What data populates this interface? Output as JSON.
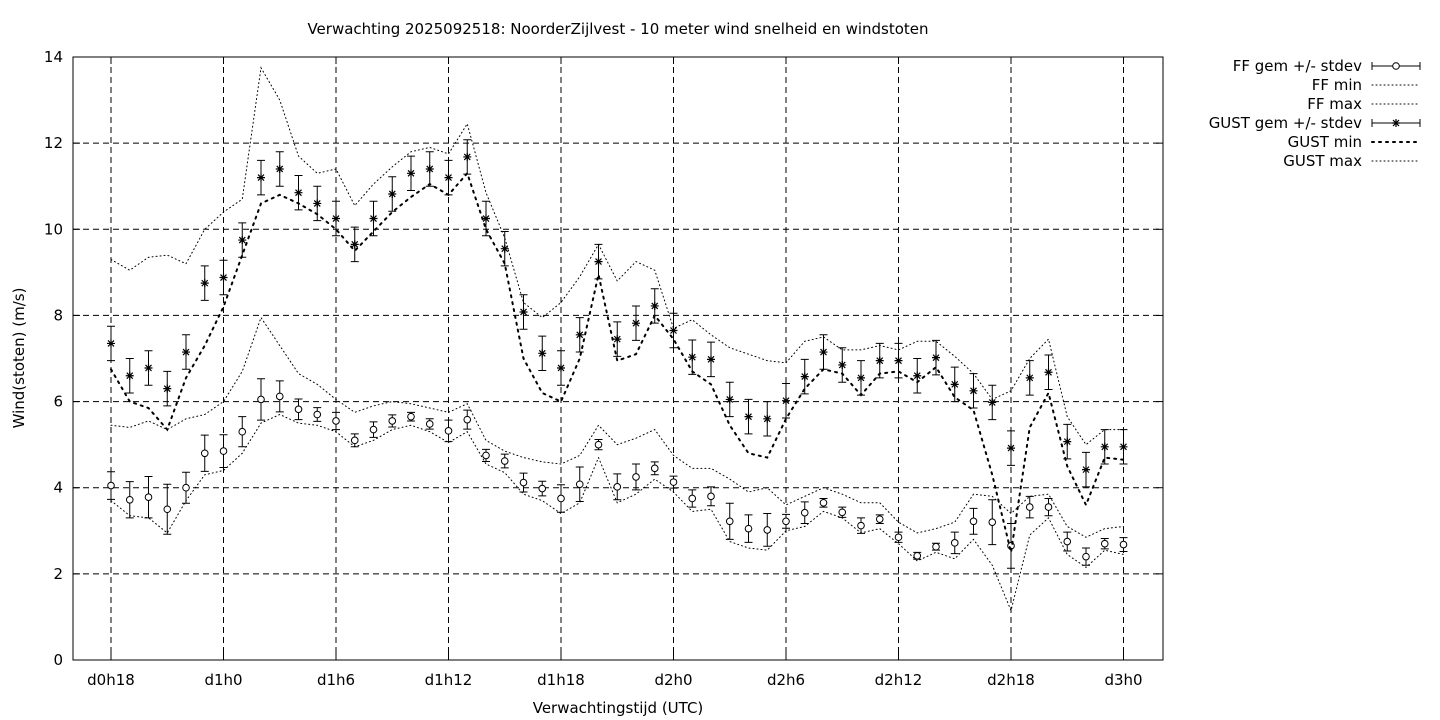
{
  "chart_data": {
    "type": "line",
    "title": "Verwachting 2025092518: NoorderZijlvest - 10 meter wind snelheid en windstoten",
    "xlabel": "Verwachtingstijd (UTC)",
    "ylabel": "Wind(stoten) (m/s)",
    "xlim": [
      0,
      57
    ],
    "ylim": [
      0,
      14
    ],
    "yticks": [
      0,
      2,
      4,
      6,
      8,
      10,
      12,
      14
    ],
    "xticks": [
      {
        "x": 0,
        "label": "d0h18"
      },
      {
        "x": 6,
        "label": "d1h0"
      },
      {
        "x": 12,
        "label": "d1h6"
      },
      {
        "x": 18,
        "label": "d1h12"
      },
      {
        "x": 24,
        "label": "d1h18"
      },
      {
        "x": 30,
        "label": "d2h0"
      },
      {
        "x": 36,
        "label": "d2h6"
      },
      {
        "x": 42,
        "label": "d2h12"
      },
      {
        "x": 48,
        "label": "d2h18"
      },
      {
        "x": 54,
        "label": "d3h0"
      }
    ],
    "grid": true,
    "legend_position": "outside-top-right",
    "x": [
      0,
      1,
      2,
      3,
      4,
      5,
      6,
      7,
      8,
      9,
      10,
      11,
      12,
      13,
      14,
      15,
      16,
      17,
      18,
      19,
      20,
      21,
      22,
      23,
      24,
      25,
      26,
      27,
      28,
      29,
      30,
      31,
      32,
      33,
      34,
      35,
      36,
      37,
      38,
      39,
      40,
      41,
      42,
      43,
      44,
      45,
      46,
      47,
      48,
      49,
      50,
      51,
      52,
      53,
      54
    ],
    "series": [
      {
        "name": "FF gem +/- stdev",
        "style": "errorbar-circle",
        "values": [
          4.05,
          3.72,
          3.78,
          3.5,
          4.0,
          4.8,
          4.85,
          5.3,
          6.05,
          6.12,
          5.82,
          5.7,
          5.55,
          5.1,
          5.35,
          5.55,
          5.65,
          5.48,
          5.32,
          5.58,
          4.75,
          4.62,
          4.12,
          3.98,
          3.75,
          4.08,
          5.0,
          4.02,
          4.25,
          4.45,
          4.13,
          3.75,
          3.8,
          3.22,
          3.05,
          3.02,
          3.22,
          3.42,
          3.65,
          3.43,
          3.12,
          3.27,
          2.85,
          2.42,
          2.63,
          2.72,
          3.22,
          3.2,
          2.65,
          3.55,
          3.55,
          2.75,
          2.4,
          2.7,
          2.68
        ],
        "stdev": [
          0.32,
          0.42,
          0.48,
          0.58,
          0.36,
          0.42,
          0.38,
          0.35,
          0.48,
          0.36,
          0.24,
          0.16,
          0.2,
          0.15,
          0.18,
          0.14,
          0.1,
          0.12,
          0.25,
          0.22,
          0.14,
          0.16,
          0.22,
          0.17,
          0.32,
          0.4,
          0.12,
          0.3,
          0.3,
          0.15,
          0.14,
          0.2,
          0.22,
          0.42,
          0.32,
          0.38,
          0.16,
          0.25,
          0.1,
          0.12,
          0.18,
          0.1,
          0.12,
          0.08,
          0.08,
          0.25,
          0.3,
          0.52,
          0.52,
          0.25,
          0.2,
          0.22,
          0.2,
          0.12,
          0.16
        ]
      },
      {
        "name": "FF min",
        "style": "dotted",
        "values": [
          3.7,
          3.35,
          3.3,
          2.95,
          3.7,
          4.3,
          4.4,
          4.8,
          5.5,
          5.7,
          5.5,
          5.45,
          5.3,
          4.95,
          5.1,
          5.35,
          5.45,
          5.3,
          5.05,
          5.3,
          4.55,
          4.35,
          3.85,
          3.7,
          3.4,
          3.65,
          4.7,
          3.65,
          3.85,
          4.2,
          3.9,
          3.45,
          3.5,
          2.75,
          2.6,
          2.55,
          3.0,
          3.1,
          3.45,
          3.3,
          2.95,
          3.05,
          2.7,
          2.3,
          2.5,
          2.35,
          2.8,
          2.2,
          1.15,
          2.9,
          3.3,
          2.45,
          2.15,
          2.55,
          2.45
        ]
      },
      {
        "name": "FF max",
        "style": "dotted",
        "values": [
          5.45,
          5.4,
          5.55,
          5.35,
          5.6,
          5.7,
          6.0,
          6.7,
          7.95,
          7.3,
          6.65,
          6.4,
          6.05,
          5.75,
          5.9,
          6.0,
          5.95,
          5.85,
          5.75,
          5.95,
          5.1,
          4.85,
          4.7,
          4.6,
          4.55,
          4.75,
          5.45,
          5.0,
          5.15,
          5.35,
          4.75,
          4.45,
          4.45,
          4.2,
          3.9,
          4.0,
          3.6,
          3.8,
          4.0,
          3.85,
          3.65,
          3.65,
          3.2,
          2.95,
          3.05,
          3.2,
          3.85,
          3.8,
          3.4,
          3.8,
          3.85,
          3.1,
          2.85,
          3.05,
          3.1
        ]
      },
      {
        "name": "GUST gem +/- stdev",
        "style": "errorbar-star",
        "values": [
          7.35,
          6.6,
          6.78,
          6.3,
          7.15,
          8.75,
          8.88,
          9.75,
          11.2,
          11.4,
          10.85,
          10.6,
          10.25,
          9.65,
          10.25,
          10.82,
          11.3,
          11.4,
          11.2,
          11.68,
          10.25,
          9.55,
          8.08,
          7.12,
          6.78,
          7.55,
          9.25,
          7.45,
          7.82,
          8.22,
          7.65,
          7.03,
          6.98,
          6.05,
          5.65,
          5.6,
          6.02,
          6.58,
          7.15,
          6.85,
          6.55,
          6.95,
          6.95,
          6.6,
          7.02,
          6.4,
          6.25,
          5.98,
          4.92,
          6.55,
          6.68,
          5.07,
          4.42,
          4.95,
          4.95
        ]
      },
      {
        "name": "GUST min",
        "style": "dotted-sparse",
        "values": [
          6.75,
          6.0,
          5.85,
          5.35,
          6.55,
          7.3,
          8.2,
          9.4,
          10.6,
          10.8,
          10.6,
          10.35,
          10.0,
          9.5,
          9.95,
          10.4,
          10.75,
          11.05,
          10.8,
          11.3,
          10.0,
          9.2,
          7.0,
          6.2,
          6.0,
          7.0,
          8.95,
          6.95,
          7.1,
          8.0,
          7.45,
          6.7,
          6.4,
          5.45,
          4.8,
          4.7,
          5.6,
          6.3,
          6.75,
          6.65,
          6.15,
          6.65,
          6.7,
          6.45,
          6.8,
          6.1,
          5.8,
          4.3,
          2.5,
          5.4,
          6.2,
          4.5,
          3.6,
          4.7,
          4.65
        ]
      },
      {
        "name": "GUST max",
        "style": "dotted",
        "values": [
          9.3,
          9.05,
          9.35,
          9.4,
          9.2,
          10.0,
          10.4,
          10.7,
          13.75,
          13.0,
          11.7,
          11.3,
          11.4,
          10.55,
          11.05,
          11.45,
          11.8,
          11.9,
          11.75,
          12.45,
          10.85,
          9.8,
          8.3,
          7.95,
          8.3,
          8.9,
          9.65,
          8.8,
          9.25,
          9.05,
          7.7,
          7.9,
          7.55,
          7.25,
          7.1,
          6.95,
          6.9,
          7.4,
          7.5,
          7.2,
          7.2,
          7.3,
          7.2,
          7.4,
          7.4,
          7.05,
          6.65,
          6.05,
          6.25,
          7.0,
          7.45,
          5.65,
          5.0,
          5.35,
          5.35
        ]
      }
    ]
  }
}
